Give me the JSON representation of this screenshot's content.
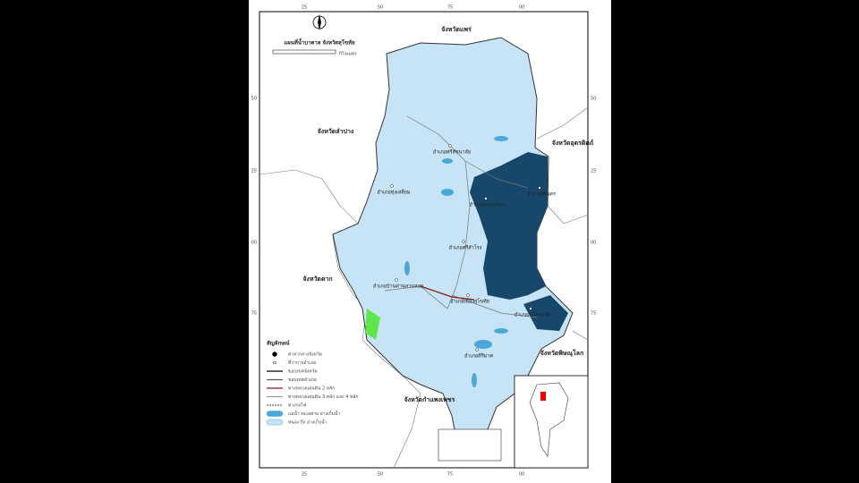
{
  "map": {
    "title": "แผนที่น้ำบาดาล จังหวัดสุโขทัย",
    "scale_unit": "กิโลเมตร",
    "neighbors": [
      "จังหวัดแพร่",
      "จังหวัดลำปาง",
      "จังหวัดอุตรดิตถ์",
      "จังหวัดตาก",
      "จังหวัดพิษณุโลก",
      "จังหวัดกำแพงเพชร"
    ],
    "districts": [
      "อำเภอศรีสัชนาลัย",
      "อำเภอทุ่งเสลี่ยม",
      "อำเภอสวรรคโลก",
      "อำเภอศรีนคร",
      "อำเภอศรีสำโรง",
      "อำเภอบ้านด่านลานหอย",
      "อำเภอเมืองสุโขทัย",
      "อำเภอกงไกรลาศ",
      "อำเภอคีรีมาศ"
    ],
    "top_ticks": [
      "25",
      "50",
      "75",
      "00"
    ],
    "side_ticks": [
      "50",
      "25",
      "00",
      "75"
    ],
    "legend": {
      "title": "สัญลักษณ์",
      "items": [
        "ศาลากลางจังหวัด",
        "ที่ว่าการอำเภอ",
        "ขอบเขตจังหวัด",
        "ขอบเขตอำเภอ",
        "ทางหลวงแผ่นดิน 2 หลัก",
        "ทางหลวงแผ่นดิน 3 หลัก และ 4 หลัก",
        "ทางรถไฟ",
        "แม่น้ำ ทะเลสาบ อ่างเก็บน้ำ",
        "หนอง บึง อ่างเก็บน้ำ"
      ]
    }
  }
}
